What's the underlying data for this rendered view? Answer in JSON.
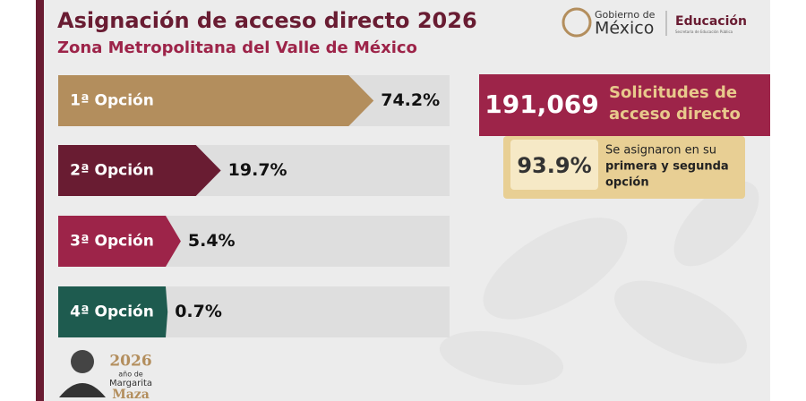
{
  "header": {
    "title": "Asignación de acceso directo 2026",
    "subtitle": "Zona Metropolitana del Valle de México"
  },
  "logo": {
    "gobierno": "Gobierno de",
    "mexico": "México",
    "educacion": "Educación",
    "sep": "Secretaría de Educación Pública"
  },
  "chart_data": {
    "type": "bar",
    "orientation": "horizontal",
    "categories": [
      "1ª Opción",
      "2ª Opción",
      "3ª Opción",
      "4ª Opción"
    ],
    "values": [
      74.2,
      19.7,
      5.4,
      0.7
    ],
    "value_labels": [
      "74.2%",
      "19.7%",
      "5.4%",
      "0.7%"
    ],
    "colors": [
      "#b38e5d",
      "#691c32",
      "#9d2449",
      "#1e5b4f"
    ],
    "xlim": [
      0,
      100
    ]
  },
  "summary": {
    "total": "191,069",
    "total_label_1": "Solicitudes de",
    "total_label_2": "acceso directo",
    "share": "93.9%",
    "share_label_1": "Se asignaron en su",
    "share_label_2": "primera y segunda",
    "share_label_3": "opción"
  },
  "footer": {
    "year": "2026",
    "line1": "año de",
    "line2": "Margarita",
    "line3": "Maza"
  }
}
